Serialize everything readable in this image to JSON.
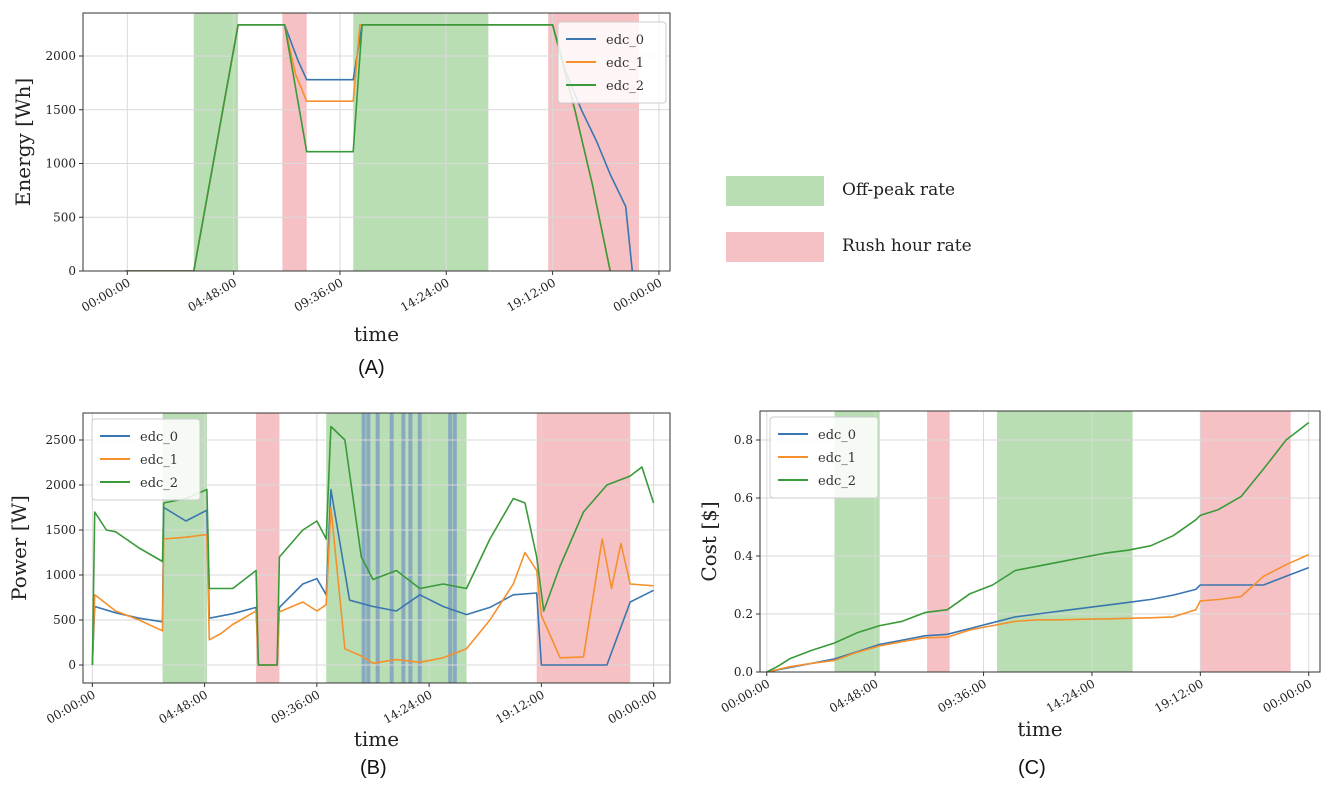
{
  "colors": {
    "edc_0": "#3a76b0",
    "edc_1": "#f5902c",
    "edc_2": "#3a9a3a",
    "offpeak": "#b9deb3",
    "rush": "#f6c1c4",
    "highlight": "#7a97c4"
  },
  "legend": {
    "offpeak_label": "Off-peak rate",
    "rush_label": "Rush hour rate"
  },
  "chart_data": [
    {
      "id": "A",
      "type": "line",
      "panel_label": "(A)",
      "xlabel": "time",
      "ylabel": "Energy [Wh]",
      "xlim": [
        -2.0,
        24.5
      ],
      "ylim": [
        0,
        2400
      ],
      "x_ticks": [
        0,
        4.8,
        9.6,
        14.4,
        19.2,
        24
      ],
      "x_tick_labels": [
        "00:00:00",
        "04:48:00",
        "09:36:00",
        "14:24:00",
        "19:12:00",
        "00:00:00"
      ],
      "y_ticks": [
        0,
        500,
        1000,
        1500,
        2000
      ],
      "grid": true,
      "legend_position": "top-right",
      "offpeak_bands": [
        [
          3.0,
          5.0
        ],
        [
          10.2,
          16.3
        ]
      ],
      "rush_bands": [
        [
          7.0,
          8.1
        ],
        [
          19.0,
          23.1
        ]
      ],
      "series": [
        {
          "name": "edc_0",
          "x": [
            -0.1,
            3.0,
            5.0,
            7.1,
            7.7,
            8.1,
            10.2,
            10.6,
            19.2,
            19.8,
            20.5,
            21.2,
            21.8,
            22.5,
            22.8
          ],
          "y": [
            0,
            0,
            2290,
            2290,
            1960,
            1780,
            1780,
            2290,
            2290,
            1850,
            1500,
            1200,
            900,
            600,
            0
          ]
        },
        {
          "name": "edc_1",
          "x": [
            -0.1,
            3.0,
            5.0,
            7.1,
            7.6,
            8.1,
            10.2,
            10.5,
            19.2,
            20.2,
            21.0,
            21.8
          ],
          "y": [
            0,
            0,
            2290,
            2290,
            1830,
            1580,
            1580,
            2290,
            2290,
            1500,
            800,
            0
          ]
        },
        {
          "name": "edc_2",
          "x": [
            -0.1,
            3.0,
            5.0,
            7.1,
            8.1,
            10.2,
            10.6,
            19.2,
            20.2,
            21.0,
            21.8
          ],
          "y": [
            0,
            0,
            2290,
            2290,
            1110,
            1110,
            2290,
            2290,
            1500,
            800,
            0
          ]
        }
      ]
    },
    {
      "id": "B",
      "type": "line",
      "panel_label": "(B)",
      "xlabel": "time",
      "ylabel": "Power [W]",
      "xlim": [
        -0.4,
        24.7
      ],
      "ylim": [
        -200,
        2800
      ],
      "x_ticks": [
        0,
        4.8,
        9.6,
        14.4,
        19.2,
        24
      ],
      "x_tick_labels": [
        "00:00:00",
        "04:48:00",
        "09:36:00",
        "14:24:00",
        "19:12:00",
        "00:00:00"
      ],
      "y_ticks": [
        0,
        500,
        1000,
        1500,
        2000,
        2500
      ],
      "grid": true,
      "legend_position": "top-left",
      "offpeak_bands": [
        [
          3.0,
          4.9
        ],
        [
          10.0,
          16.0
        ]
      ],
      "rush_bands": [
        [
          7.0,
          8.0
        ],
        [
          19.0,
          23.0
        ]
      ],
      "highlight_lines": [
        11.6,
        11.8,
        12.2,
        12.8,
        13.3,
        13.6,
        14.0,
        15.3,
        15.5
      ],
      "series": [
        {
          "name": "edc_0",
          "x": [
            0.0,
            0.1,
            1.0,
            2.0,
            3.0,
            3.05,
            4.0,
            4.9,
            5.0,
            6.0,
            7.0,
            7.1,
            7.9,
            8.0,
            9.0,
            9.6,
            10.0,
            10.2,
            11.0,
            12.0,
            13.0,
            14.0,
            15.0,
            16.0,
            17.0,
            18.0,
            19.0,
            19.2,
            20.0,
            21.0,
            22.0,
            23.0,
            24.0
          ],
          "y": [
            0,
            650,
            580,
            520,
            480,
            1750,
            1600,
            1720,
            520,
            570,
            640,
            0,
            0,
            640,
            900,
            960,
            780,
            1950,
            720,
            650,
            600,
            780,
            650,
            560,
            640,
            780,
            800,
            0,
            0,
            0,
            0,
            700,
            830
          ]
        },
        {
          "name": "edc_1",
          "x": [
            0.0,
            0.1,
            1.0,
            2.0,
            3.0,
            3.05,
            4.0,
            4.9,
            5.0,
            5.5,
            6.0,
            7.0,
            7.1,
            7.9,
            8.0,
            9.0,
            9.6,
            10.0,
            10.2,
            10.8,
            11.5,
            12.0,
            13.0,
            14.0,
            15.0,
            16.0,
            17.0,
            18.0,
            18.5,
            19.0,
            19.2,
            20.0,
            21.0,
            21.8,
            22.2,
            22.6,
            23.0,
            24.0
          ],
          "y": [
            0,
            780,
            600,
            500,
            380,
            1400,
            1420,
            1450,
            280,
            350,
            450,
            600,
            0,
            0,
            590,
            700,
            600,
            670,
            1750,
            180,
            100,
            20,
            60,
            30,
            80,
            180,
            500,
            900,
            1250,
            1050,
            550,
            80,
            90,
            1400,
            850,
            1350,
            900,
            880
          ]
        },
        {
          "name": "edc_2",
          "x": [
            0.0,
            0.1,
            0.6,
            1.0,
            2.0,
            3.0,
            3.05,
            4.0,
            4.9,
            5.0,
            6.0,
            7.0,
            7.1,
            7.9,
            8.0,
            9.0,
            9.6,
            10.0,
            10.2,
            10.8,
            11.5,
            12.0,
            13.0,
            14.0,
            15.0,
            16.0,
            17.0,
            18.0,
            18.5,
            19.0,
            19.3,
            20.0,
            21.0,
            22.0,
            23.0,
            23.5,
            24.0
          ],
          "y": [
            0,
            1700,
            1500,
            1480,
            1300,
            1150,
            1800,
            1850,
            1950,
            850,
            850,
            1050,
            0,
            0,
            1200,
            1500,
            1600,
            1400,
            2650,
            2500,
            1200,
            950,
            1050,
            850,
            900,
            850,
            1400,
            1850,
            1800,
            1200,
            600,
            1100,
            1700,
            2000,
            2100,
            2200,
            1800
          ]
        }
      ]
    },
    {
      "id": "C",
      "type": "line",
      "panel_label": "(C)",
      "xlabel": "time",
      "ylabel": "Cost [$]",
      "xlim": [
        -0.3,
        24.5
      ],
      "ylim": [
        0,
        0.9
      ],
      "x_ticks": [
        0,
        4.8,
        9.6,
        14.4,
        19.2,
        24
      ],
      "x_tick_labels": [
        "00:00:00",
        "04:48:00",
        "09:36:00",
        "14:24:00",
        "19:12:00",
        "00:00:00"
      ],
      "y_ticks": [
        0.0,
        0.2,
        0.4,
        0.6,
        0.8
      ],
      "grid": true,
      "legend_position": "top-left",
      "offpeak_bands": [
        [
          3.0,
          5.0
        ],
        [
          10.2,
          16.2
        ]
      ],
      "rush_bands": [
        [
          7.1,
          8.1
        ],
        [
          19.2,
          23.2
        ]
      ],
      "series": [
        {
          "name": "edc_0",
          "x": [
            0,
            1,
            2,
            3,
            4,
            5,
            6,
            7,
            8,
            9,
            10,
            11,
            12,
            13,
            14,
            15,
            16,
            17,
            18,
            19,
            19.2,
            20,
            21,
            22,
            23,
            24
          ],
          "y": [
            0,
            0.015,
            0.03,
            0.045,
            0.07,
            0.095,
            0.11,
            0.125,
            0.13,
            0.15,
            0.17,
            0.19,
            0.2,
            0.21,
            0.22,
            0.23,
            0.24,
            0.25,
            0.265,
            0.285,
            0.3,
            0.3,
            0.3,
            0.3,
            0.33,
            0.36
          ]
        },
        {
          "name": "edc_1",
          "x": [
            0,
            1,
            2,
            3,
            4,
            5,
            6,
            7,
            8,
            9,
            10,
            11,
            12,
            13,
            14,
            15,
            16,
            17,
            18,
            19,
            19.2,
            20,
            21,
            22,
            23,
            24
          ],
          "y": [
            0,
            0.018,
            0.03,
            0.04,
            0.068,
            0.09,
            0.105,
            0.118,
            0.12,
            0.145,
            0.16,
            0.175,
            0.18,
            0.18,
            0.182,
            0.183,
            0.185,
            0.187,
            0.19,
            0.215,
            0.245,
            0.25,
            0.26,
            0.33,
            0.37,
            0.405
          ]
        },
        {
          "name": "edc_2",
          "x": [
            0,
            0.5,
            1,
            2,
            3,
            4,
            5,
            6,
            7,
            8,
            9,
            10,
            11,
            12,
            13,
            14,
            15,
            16,
            17,
            18,
            19,
            19.2,
            20,
            21,
            22,
            23,
            24
          ],
          "y": [
            0,
            0.02,
            0.045,
            0.075,
            0.1,
            0.135,
            0.16,
            0.175,
            0.205,
            0.215,
            0.27,
            0.3,
            0.35,
            0.365,
            0.38,
            0.395,
            0.41,
            0.42,
            0.435,
            0.47,
            0.525,
            0.54,
            0.56,
            0.605,
            0.7,
            0.8,
            0.86
          ]
        }
      ]
    }
  ]
}
